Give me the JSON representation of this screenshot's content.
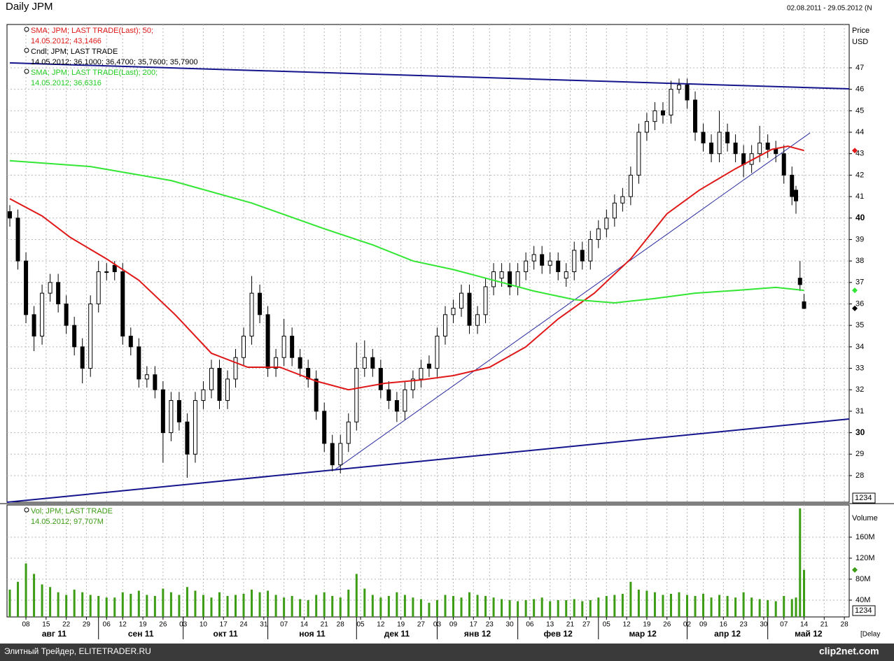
{
  "header": {
    "title": "Daily JPM",
    "range": "02.08.2011 - 29.05.2012 (N"
  },
  "chart_data": [
    {
      "type": "candlestick",
      "axis_label": "Price",
      "unit": "USD",
      "box_label": "1234",
      "candle_name": "Cndl; JPM; LAST TRADE",
      "candle_detail": "14.05.2012; 36,1000; 36,4700; 35,7600; 35,7900",
      "xlim": [
        -0.7,
        208.2
      ],
      "ylim": [
        26.76,
        49.02
      ],
      "yticks": [
        28,
        29,
        30,
        31,
        32,
        33,
        34,
        35,
        36,
        37,
        38,
        39,
        40,
        41,
        42,
        43,
        44,
        45,
        46,
        47
      ],
      "grid": true,
      "x": [
        0,
        2,
        4,
        6,
        8,
        10,
        12,
        14,
        16,
        18,
        20,
        22,
        24,
        26,
        28,
        30,
        32,
        34,
        36,
        38,
        40,
        42,
        44,
        46,
        48,
        50,
        52,
        54,
        56,
        58,
        60,
        62,
        64,
        66,
        68,
        70,
        72,
        74,
        76,
        78,
        80,
        82,
        84,
        86,
        88,
        90,
        92,
        94,
        96,
        98,
        100,
        102,
        104,
        106,
        108,
        110,
        112,
        114,
        116,
        118,
        120,
        122,
        124,
        126,
        128,
        130,
        132,
        134,
        136,
        138,
        140,
        142,
        144,
        146,
        148,
        150,
        152,
        154,
        156,
        158,
        160,
        162,
        164,
        166,
        168,
        170,
        172,
        174,
        176,
        178,
        180,
        182,
        184,
        186,
        188,
        190,
        192,
        194,
        195,
        196,
        197
      ],
      "open": [
        40.3,
        40.0,
        38.0,
        35.5,
        34.5,
        36.5,
        37.0,
        36.0,
        35.0,
        34.0,
        33.0,
        36.0,
        37.5,
        37.8,
        37.5,
        34.5,
        34.0,
        32.5,
        32.7,
        32.0,
        30.0,
        31.5,
        30.5,
        29.0,
        31.5,
        32.0,
        33.0,
        31.5,
        32.5,
        33.5,
        34.5,
        36.5,
        35.5,
        33.0,
        33.5,
        34.5,
        33.5,
        33.0,
        32.5,
        31.0,
        29.5,
        28.5,
        29.5,
        30.5,
        33.0,
        33.5,
        33.0,
        32.0,
        31.5,
        31.0,
        32.0,
        32.5,
        33.2,
        33.0,
        34.5,
        35.5,
        35.8,
        36.5,
        35.0,
        35.5,
        36.8,
        37.2,
        37.5,
        36.8,
        37.5,
        38.0,
        38.3,
        37.8,
        38.0,
        37.2,
        37.5,
        38.5,
        38.0,
        39.0,
        39.5,
        40.0,
        40.7,
        41.0,
        42.0,
        44.0,
        44.5,
        45.0,
        44.8,
        46.0,
        46.2,
        45.5,
        44.0,
        43.5,
        43.0,
        44.0,
        43.5,
        43.0,
        42.5,
        43.0,
        43.5,
        43.2,
        43.0,
        42.0,
        41.3,
        37.2,
        36.1
      ],
      "high": [
        40.6,
        40.4,
        38.4,
        35.9,
        36.9,
        37.4,
        37.4,
        36.4,
        35.4,
        34.4,
        36.4,
        38.0,
        37.9,
        38.0,
        37.9,
        34.9,
        34.4,
        33.1,
        33.1,
        32.4,
        31.9,
        31.9,
        30.9,
        31.9,
        32.4,
        33.4,
        33.4,
        32.9,
        33.9,
        34.9,
        37.3,
        36.9,
        35.9,
        33.9,
        35.3,
        34.9,
        33.9,
        33.4,
        32.9,
        31.4,
        29.9,
        29.9,
        30.9,
        34.2,
        34.3,
        33.9,
        33.4,
        32.4,
        31.9,
        32.4,
        32.9,
        33.4,
        33.6,
        34.9,
        35.9,
        36.2,
        36.9,
        36.9,
        35.9,
        37.2,
        37.9,
        37.9,
        37.9,
        37.9,
        38.4,
        38.7,
        38.7,
        38.4,
        38.4,
        37.9,
        38.9,
        38.9,
        39.4,
        39.9,
        40.4,
        41.1,
        41.4,
        42.4,
        44.4,
        44.9,
        45.4,
        45.4,
        46.4,
        46.5,
        46.5,
        45.9,
        44.4,
        43.9,
        45.0,
        44.4,
        43.9,
        43.4,
        43.4,
        44.3,
        43.9,
        43.6,
        43.4,
        42.4,
        41.5,
        38.0,
        36.47
      ],
      "low": [
        39.6,
        37.6,
        35.1,
        33.8,
        34.1,
        36.1,
        35.6,
        34.6,
        33.6,
        32.3,
        32.6,
        35.6,
        37.1,
        37.1,
        34.1,
        33.6,
        32.1,
        32.1,
        31.6,
        28.6,
        29.6,
        30.1,
        27.9,
        28.6,
        31.1,
        31.6,
        31.1,
        31.1,
        32.1,
        33.1,
        34.1,
        35.1,
        32.6,
        32.6,
        33.1,
        33.1,
        32.6,
        32.1,
        30.6,
        29.1,
        28.2,
        28.1,
        29.1,
        30.1,
        32.6,
        32.6,
        31.6,
        31.1,
        30.5,
        30.6,
        31.6,
        32.1,
        32.6,
        32.6,
        34.1,
        35.1,
        35.4,
        34.6,
        34.6,
        35.1,
        36.4,
        36.8,
        36.4,
        36.4,
        37.1,
        37.6,
        37.4,
        37.4,
        37.1,
        36.8,
        37.1,
        37.6,
        37.6,
        38.6,
        39.1,
        39.6,
        40.3,
        40.6,
        41.6,
        43.6,
        44.1,
        44.4,
        44.4,
        45.8,
        45.1,
        43.6,
        43.1,
        42.6,
        42.6,
        43.1,
        42.6,
        41.9,
        42.1,
        42.6,
        42.8,
        42.6,
        41.6,
        40.6,
        40.2,
        36.6,
        35.76
      ],
      "close": [
        40.0,
        38.0,
        35.5,
        34.5,
        36.5,
        37.0,
        36.0,
        35.0,
        34.0,
        33.0,
        36.0,
        37.5,
        37.5,
        37.5,
        34.5,
        34.0,
        32.5,
        32.7,
        32.0,
        30.0,
        31.5,
        30.5,
        29.0,
        31.5,
        32.0,
        33.0,
        31.5,
        32.5,
        33.5,
        34.5,
        36.5,
        35.5,
        33.0,
        33.5,
        34.5,
        33.5,
        33.0,
        32.5,
        31.0,
        29.5,
        28.5,
        29.5,
        30.5,
        33.0,
        33.5,
        33.0,
        32.0,
        31.5,
        31.0,
        32.0,
        32.5,
        33.0,
        33.0,
        34.5,
        35.5,
        35.8,
        36.5,
        35.0,
        35.5,
        36.8,
        37.5,
        37.5,
        36.8,
        37.5,
        38.0,
        38.3,
        37.8,
        38.0,
        37.5,
        37.5,
        38.5,
        38.0,
        39.0,
        39.5,
        40.0,
        40.7,
        41.0,
        42.0,
        44.0,
        44.5,
        45.0,
        44.8,
        46.0,
        46.2,
        45.5,
        44.0,
        43.5,
        43.0,
        44.0,
        43.5,
        43.0,
        42.5,
        43.0,
        43.5,
        43.2,
        43.0,
        42.0,
        41.0,
        40.8,
        36.9,
        35.79
      ],
      "series": [
        {
          "name": "SMA; JPM; LAST TRADE(Last);  50;",
          "detail": "14.05.2012; 43,1466",
          "color": "#e01818",
          "x": [
            0,
            8,
            15,
            24,
            32,
            41,
            50,
            59,
            67,
            76,
            84,
            93,
            102,
            110,
            119,
            128,
            136,
            145,
            154,
            163,
            171,
            180,
            189,
            193,
            197
          ],
          "values": [
            40.9,
            40.1,
            39.1,
            38.1,
            37.1,
            35.5,
            33.7,
            33.05,
            33.05,
            32.4,
            32.0,
            32.3,
            32.46,
            32.66,
            33.05,
            34.0,
            35.3,
            36.5,
            38.1,
            40.2,
            41.3,
            42.3,
            43.2,
            43.35,
            43.1466
          ]
        },
        {
          "name": "SMA; JPM; LAST TRADE(Last);  200;",
          "detail": "14.05.2012; 36,6316",
          "color": "#33e633",
          "x": [
            0,
            20,
            40,
            60,
            78,
            90,
            100,
            110,
            120,
            130,
            140,
            150,
            160,
            170,
            180,
            190,
            197
          ],
          "values": [
            42.67,
            42.4,
            41.75,
            40.7,
            39.5,
            38.75,
            38.0,
            37.6,
            37.1,
            36.6,
            36.2,
            36.05,
            36.25,
            36.5,
            36.63,
            36.77,
            36.6316
          ]
        }
      ],
      "trendlines": [
        {
          "color": "#14148c",
          "x": [
            0,
            208.2
          ],
          "values": [
            47.23,
            46.02
          ]
        },
        {
          "color": "#14148c",
          "x": [
            -0.7,
            208.2
          ],
          "values": [
            26.76,
            30.64
          ]
        },
        {
          "color": "#2a2aa0",
          "x": [
            80.5,
            198.5
          ],
          "values": [
            28.26,
            43.97
          ]
        }
      ]
    },
    {
      "type": "bar",
      "axis_label": "Volume",
      "box_label": "1234",
      "name": "Vol; JPM; LAST TRADE",
      "detail": "14.05.2012; 97,707M",
      "color": "#3c9c14",
      "xlim": [
        -0.7,
        208.2
      ],
      "ylim": [
        8,
        221.3
      ],
      "yticks": [
        {
          "value": 40,
          "label": "40M"
        },
        {
          "value": 80,
          "label": "80M"
        },
        {
          "value": 120,
          "label": "120M"
        },
        {
          "value": 160,
          "label": "160M"
        }
      ],
      "grid": true,
      "x": [
        0,
        2,
        4,
        6,
        8,
        10,
        12,
        14,
        16,
        18,
        20,
        22,
        24,
        26,
        28,
        30,
        32,
        34,
        36,
        38,
        40,
        42,
        44,
        46,
        48,
        50,
        52,
        54,
        56,
        58,
        60,
        62,
        64,
        66,
        68,
        70,
        72,
        74,
        76,
        78,
        80,
        82,
        84,
        86,
        88,
        90,
        92,
        94,
        96,
        98,
        100,
        102,
        104,
        106,
        108,
        110,
        112,
        114,
        116,
        118,
        120,
        122,
        124,
        126,
        128,
        130,
        132,
        134,
        136,
        138,
        140,
        142,
        144,
        146,
        148,
        150,
        152,
        154,
        156,
        158,
        160,
        162,
        164,
        166,
        168,
        170,
        172,
        174,
        176,
        178,
        180,
        182,
        184,
        186,
        188,
        190,
        192,
        194,
        195,
        196,
        197
      ],
      "values": [
        60,
        75,
        110,
        90,
        70,
        65,
        55,
        50,
        60,
        55,
        50,
        48,
        45,
        45,
        55,
        52,
        58,
        50,
        48,
        62,
        55,
        50,
        65,
        58,
        50,
        45,
        55,
        48,
        50,
        52,
        60,
        55,
        58,
        50,
        45,
        48,
        42,
        40,
        50,
        55,
        48,
        45,
        60,
        90,
        62,
        50,
        45,
        48,
        55,
        50,
        45,
        42,
        35,
        40,
        50,
        48,
        45,
        55,
        50,
        48,
        45,
        42,
        40,
        38,
        40,
        42,
        45,
        38,
        40,
        40,
        42,
        38,
        40,
        45,
        48,
        50,
        52,
        75,
        60,
        58,
        55,
        50,
        52,
        55,
        50,
        48,
        52,
        45,
        50,
        48,
        45,
        55,
        45,
        42,
        40,
        38,
        48,
        42,
        45,
        215,
        97.707
      ],
      "xticks": [
        {
          "value": 4,
          "label": "08"
        },
        {
          "value": 9,
          "label": "15"
        },
        {
          "value": 14,
          "label": "22"
        },
        {
          "value": 19,
          "label": "29"
        },
        {
          "value": 24,
          "label": "06"
        },
        {
          "value": 28,
          "label": "12"
        },
        {
          "value": 33,
          "label": "19"
        },
        {
          "value": 38,
          "label": "26"
        },
        {
          "value": 43,
          "label": "03"
        },
        {
          "value": 48,
          "label": "10"
        },
        {
          "value": 53,
          "label": "17"
        },
        {
          "value": 58,
          "label": "24"
        },
        {
          "value": 63,
          "label": "31"
        },
        {
          "value": 68,
          "label": "07"
        },
        {
          "value": 73,
          "label": "14"
        },
        {
          "value": 78,
          "label": "21"
        },
        {
          "value": 82,
          "label": "28"
        },
        {
          "value": 87,
          "label": "05"
        },
        {
          "value": 92,
          "label": "12"
        },
        {
          "value": 97,
          "label": "19"
        },
        {
          "value": 102,
          "label": "27"
        },
        {
          "value": 106,
          "label": "03"
        },
        {
          "value": 110,
          "label": "09"
        },
        {
          "value": 115,
          "label": "17"
        },
        {
          "value": 119,
          "label": "23"
        },
        {
          "value": 124,
          "label": "30"
        },
        {
          "value": 129,
          "label": "06"
        },
        {
          "value": 134,
          "label": "13"
        },
        {
          "value": 139,
          "label": "21"
        },
        {
          "value": 143,
          "label": "27"
        },
        {
          "value": 148,
          "label": "05"
        },
        {
          "value": 153,
          "label": "12"
        },
        {
          "value": 158,
          "label": "19"
        },
        {
          "value": 163,
          "label": "26"
        },
        {
          "value": 168,
          "label": "02"
        },
        {
          "value": 172,
          "label": "09"
        },
        {
          "value": 177,
          "label": "16"
        },
        {
          "value": 182,
          "label": "23"
        },
        {
          "value": 187,
          "label": "30"
        },
        {
          "value": 192,
          "label": "07"
        },
        {
          "value": 197,
          "label": "14"
        },
        {
          "value": 202,
          "label": "21"
        },
        {
          "value": 207,
          "label": "28"
        }
      ],
      "months": [
        {
          "value": 0,
          "label": "авг 11"
        },
        {
          "value": 22,
          "label": "сен 11"
        },
        {
          "value": 43,
          "label": "окт 11"
        },
        {
          "value": 64,
          "label": "ноя 11"
        },
        {
          "value": 86,
          "label": "дек 11"
        },
        {
          "value": 106,
          "label": "янв 12"
        },
        {
          "value": 126,
          "label": "фев 12"
        },
        {
          "value": 146,
          "label": "мар 12"
        },
        {
          "value": 168,
          "label": "апр 12"
        },
        {
          "value": 188,
          "label": "май 12"
        }
      ]
    }
  ],
  "delay": "[Delay",
  "footer": {
    "source": "Элитный Трейдер, ELITETRADER.RU",
    "brand": "clip2net.com"
  }
}
